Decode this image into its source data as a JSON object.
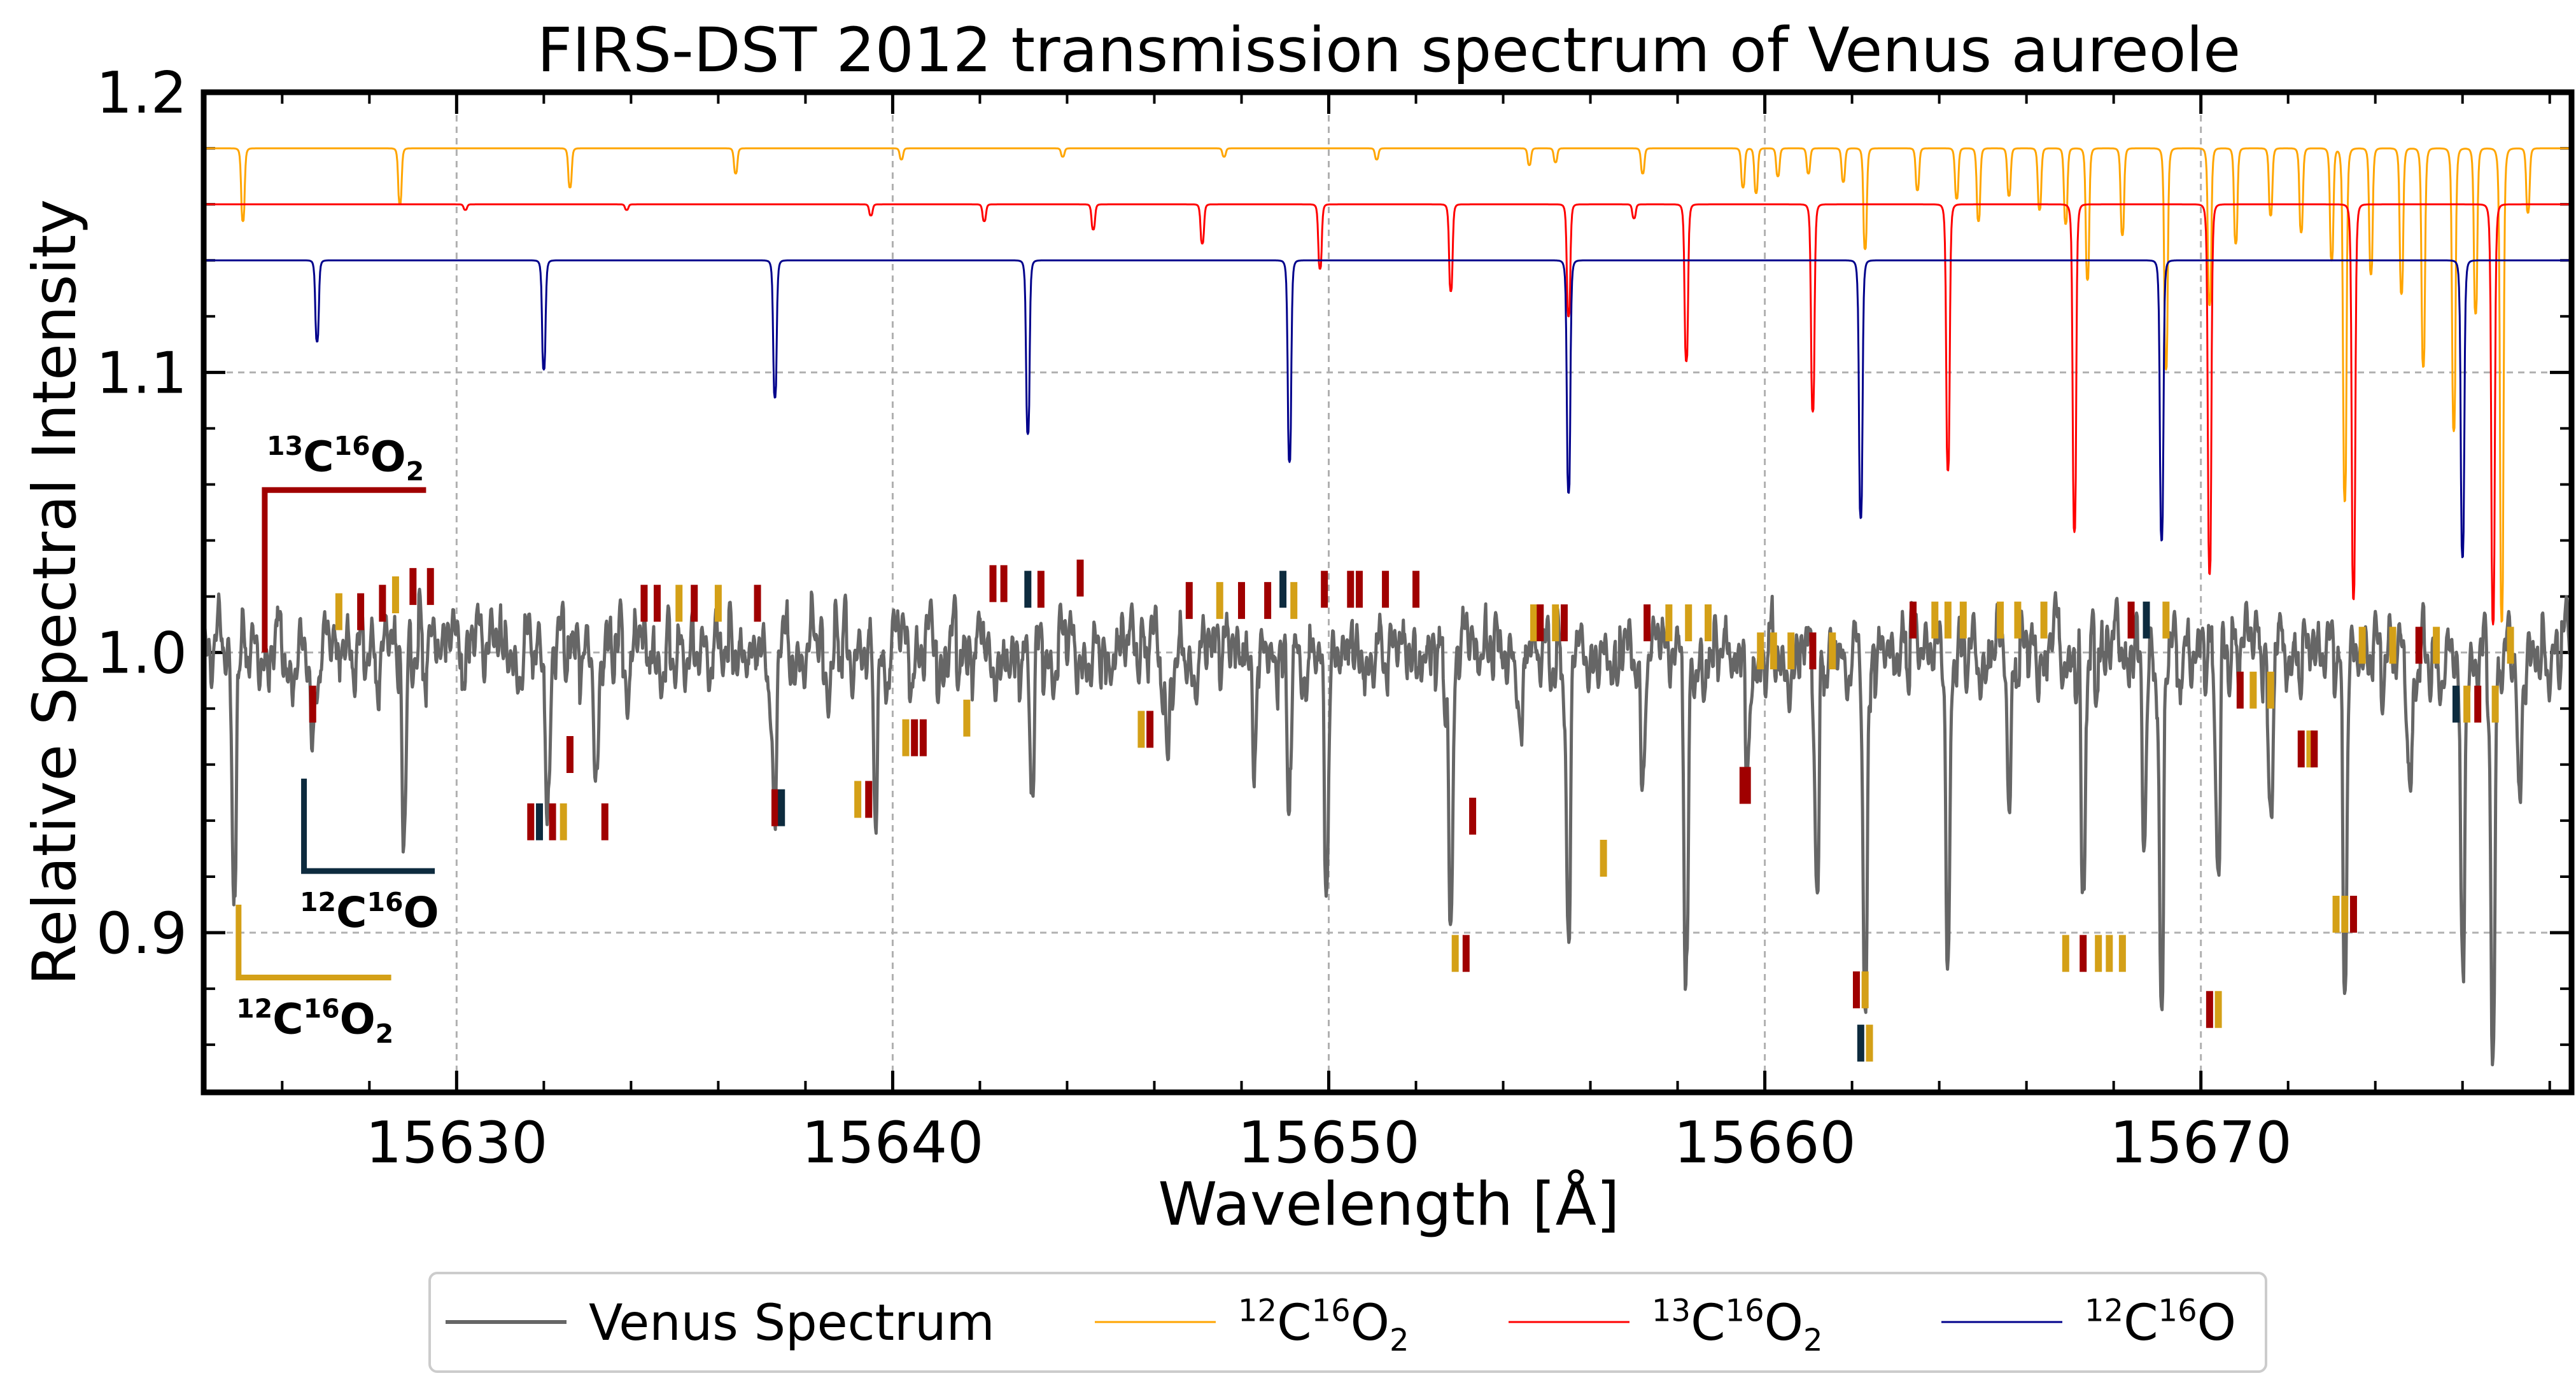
{
  "chart_data": {
    "type": "line",
    "title": "FIRS-DST 2012 transmission spectrum of Venus aureole",
    "xlabel": "Wavelength [Å]",
    "ylabel": "Relative Spectral Intensity",
    "xlim": [
      15624.2,
      15678.5
    ],
    "ylim": [
      0.843,
      1.2
    ],
    "xticks": [
      15630,
      15640,
      15650,
      15660,
      15670
    ],
    "xtick_labels": [
      "15630",
      "15640",
      "15650",
      "15660",
      "15670"
    ],
    "yticks": [
      0.9,
      1.0,
      1.1,
      1.2
    ],
    "ytick_labels": [
      "0.9",
      "1.0",
      "1.1",
      "1.2"
    ],
    "grid": true,
    "legend_position": "bottom-center, below axes",
    "legend": [
      {
        "key": "venus",
        "label": "Venus Spectrum",
        "color": "#666666",
        "iso": null
      },
      {
        "key": "co2_12",
        "label": "12C16O2",
        "color": "#ffa500",
        "iso": {
          "a": "12",
          "e": "C",
          "b": "16",
          "f": "O",
          "s": "2"
        }
      },
      {
        "key": "co2_13",
        "label": "13C16O2",
        "color": "#ff0000",
        "iso": {
          "a": "13",
          "e": "C",
          "b": "16",
          "f": "O",
          "s": "2"
        }
      },
      {
        "key": "co_12",
        "label": "12C16O",
        "color": "#00008b",
        "iso": {
          "a": "12",
          "e": "C",
          "b": "16",
          "f": "O",
          "s": ""
        }
      }
    ],
    "series": [
      {
        "key": "co2_12",
        "name": "12C16O2",
        "color": "#ffa500",
        "continuum": 1.18,
        "lines": [
          [
            15625.1,
            0.026
          ],
          [
            15628.7,
            0.02
          ],
          [
            15632.6,
            0.014
          ],
          [
            15636.4,
            0.009
          ],
          [
            15640.2,
            0.004
          ],
          [
            15643.9,
            0.003
          ],
          [
            15647.6,
            0.003
          ],
          [
            15651.1,
            0.004
          ],
          [
            15654.6,
            0.006
          ],
          [
            15655.2,
            0.005
          ],
          [
            15657.2,
            0.009
          ],
          [
            15659.5,
            0.014
          ],
          [
            15659.8,
            0.016
          ],
          [
            15660.3,
            0.01
          ],
          [
            15661.0,
            0.009
          ],
          [
            15661.8,
            0.012
          ],
          [
            15662.3,
            0.036
          ],
          [
            15663.5,
            0.015
          ],
          [
            15664.4,
            0.018
          ],
          [
            15664.9,
            0.026
          ],
          [
            15665.6,
            0.017
          ],
          [
            15666.3,
            0.022
          ],
          [
            15666.9,
            0.027
          ],
          [
            15667.4,
            0.047
          ],
          [
            15668.2,
            0.031
          ],
          [
            15669.2,
            0.079
          ],
          [
            15670.2,
            0.056
          ],
          [
            15670.8,
            0.034
          ],
          [
            15671.6,
            0.024
          ],
          [
            15672.3,
            0.03
          ],
          [
            15673.0,
            0.04
          ],
          [
            15673.3,
            0.126
          ],
          [
            15673.9,
            0.045
          ],
          [
            15674.6,
            0.052
          ],
          [
            15675.1,
            0.078
          ],
          [
            15675.8,
            0.101
          ],
          [
            15676.3,
            0.059
          ],
          [
            15676.9,
            0.169
          ],
          [
            15677.5,
            0.023
          ]
        ]
      },
      {
        "key": "co2_13",
        "name": "13C16O2",
        "color": "#ff0000",
        "continuum": 1.16,
        "lines": [
          [
            15630.2,
            0.002
          ],
          [
            15633.9,
            0.002
          ],
          [
            15639.5,
            0.004
          ],
          [
            15642.1,
            0.006
          ],
          [
            15644.6,
            0.009
          ],
          [
            15647.1,
            0.014
          ],
          [
            15649.8,
            0.023
          ],
          [
            15652.8,
            0.031
          ],
          [
            15655.5,
            0.04
          ],
          [
            15657.0,
            0.005
          ],
          [
            15658.2,
            0.056
          ],
          [
            15661.1,
            0.074
          ],
          [
            15664.2,
            0.095
          ],
          [
            15667.1,
            0.117
          ],
          [
            15670.2,
            0.132
          ],
          [
            15673.5,
            0.141
          ],
          [
            15676.7,
            0.15
          ]
        ]
      },
      {
        "key": "co_12",
        "name": "12C16O",
        "color": "#00008b",
        "continuum": 1.14,
        "lines": [
          [
            15626.8,
            0.029
          ],
          [
            15632.0,
            0.039
          ],
          [
            15637.3,
            0.049
          ],
          [
            15643.1,
            0.062
          ],
          [
            15649.1,
            0.072
          ],
          [
            15655.5,
            0.083
          ],
          [
            15662.2,
            0.092
          ],
          [
            15669.1,
            0.1
          ],
          [
            15676.0,
            0.106
          ]
        ]
      },
      {
        "key": "venus",
        "name": "Venus Spectrum",
        "color": "#666666",
        "continuum": 1.0,
        "lines": [
          [
            15624.9,
            0.082
          ],
          [
            15626.7,
            0.032
          ],
          [
            15628.8,
            0.068
          ],
          [
            15632.1,
            0.052
          ],
          [
            15633.2,
            0.045
          ],
          [
            15637.3,
            0.055
          ],
          [
            15639.6,
            0.055
          ],
          [
            15643.2,
            0.048
          ],
          [
            15646.3,
            0.036
          ],
          [
            15648.3,
            0.036
          ],
          [
            15649.1,
            0.052
          ],
          [
            15649.95,
            0.088
          ],
          [
            15652.8,
            0.096
          ],
          [
            15654.4,
            0.03
          ],
          [
            15655.5,
            0.104
          ],
          [
            15657.2,
            0.052
          ],
          [
            15658.2,
            0.12
          ],
          [
            15659.6,
            0.05
          ],
          [
            15661.2,
            0.08
          ],
          [
            15662.3,
            0.133
          ],
          [
            15664.2,
            0.11
          ],
          [
            15665.6,
            0.06
          ],
          [
            15667.3,
            0.1
          ],
          [
            15668.7,
            0.06
          ],
          [
            15669.1,
            0.133
          ],
          [
            15670.4,
            0.078
          ],
          [
            15671.6,
            0.056
          ],
          [
            15673.3,
            0.125
          ],
          [
            15674.8,
            0.05
          ],
          [
            15676.0,
            0.11
          ],
          [
            15676.7,
            0.145
          ],
          [
            15677.3,
            0.05
          ]
        ]
      }
    ],
    "line_markers": {
      "colors": {
        "co2_12": "#d4a017",
        "co2_13": "#a00000",
        "co_12": "#0d2b3e"
      },
      "items": [
        [
          "co2_12",
          15627.3,
          1.008
        ],
        [
          "co2_13",
          15627.8,
          1.008
        ],
        [
          "co2_13",
          15628.3,
          1.011
        ],
        [
          "co2_12",
          15628.6,
          1.014
        ],
        [
          "co2_13",
          15629.0,
          1.017
        ],
        [
          "co2_13",
          15629.4,
          1.017
        ],
        [
          "co2_13",
          15626.7,
          0.975
        ],
        [
          "co2_13",
          15631.7,
          0.933
        ],
        [
          "co_12",
          15631.9,
          0.933
        ],
        [
          "co2_13",
          15632.2,
          0.933
        ],
        [
          "co2_12",
          15632.45,
          0.933
        ],
        [
          "co2_13",
          15632.6,
          0.957
        ],
        [
          "co2_13",
          15633.4,
          0.933
        ],
        [
          "co2_13",
          15634.3,
          1.011
        ],
        [
          "co2_13",
          15634.6,
          1.011
        ],
        [
          "co2_12",
          15635.1,
          1.011
        ],
        [
          "co2_13",
          15635.45,
          1.011
        ],
        [
          "co2_12",
          15636.0,
          1.011
        ],
        [
          "co2_13",
          15636.9,
          1.011
        ],
        [
          "co2_13",
          15637.3,
          0.938
        ],
        [
          "co_12",
          15637.45,
          0.938
        ],
        [
          "co2_12",
          15639.2,
          0.941
        ],
        [
          "co2_13",
          15639.45,
          0.941
        ],
        [
          "co2_12",
          15640.3,
          0.963
        ],
        [
          "co2_13",
          15640.5,
          0.963
        ],
        [
          "co2_13",
          15640.7,
          0.963
        ],
        [
          "co2_12",
          15641.7,
          0.97
        ],
        [
          "co2_13",
          15642.3,
          1.018
        ],
        [
          "co2_13",
          15642.55,
          1.018
        ],
        [
          "co_12",
          15643.1,
          1.016
        ],
        [
          "co2_13",
          15643.4,
          1.016
        ],
        [
          "co2_13",
          15644.3,
          1.02
        ],
        [
          "co2_12",
          15645.7,
          0.966
        ],
        [
          "co2_13",
          15645.9,
          0.966
        ],
        [
          "co2_13",
          15646.8,
          1.012
        ],
        [
          "co2_12",
          15647.5,
          1.012
        ],
        [
          "co2_13",
          15648.0,
          1.012
        ],
        [
          "co2_13",
          15648.6,
          1.012
        ],
        [
          "co_12",
          15648.95,
          1.016
        ],
        [
          "co2_12",
          15649.2,
          1.012
        ],
        [
          "co2_13",
          15649.9,
          1.016
        ],
        [
          "co2_13",
          15650.5,
          1.016
        ],
        [
          "co2_13",
          15650.7,
          1.016
        ],
        [
          "co2_13",
          15651.3,
          1.016
        ],
        [
          "co2_13",
          15652.0,
          1.016
        ],
        [
          "co2_12",
          15652.9,
          0.886
        ],
        [
          "co2_13",
          15653.15,
          0.886
        ],
        [
          "co2_13",
          15653.3,
          0.935
        ],
        [
          "co2_12",
          15654.7,
          1.004
        ],
        [
          "co2_13",
          15654.85,
          1.004
        ],
        [
          "co2_12",
          15655.2,
          1.004
        ],
        [
          "co2_13",
          15655.4,
          1.004
        ],
        [
          "co2_12",
          15656.3,
          0.92
        ],
        [
          "co2_13",
          15657.3,
          1.004
        ],
        [
          "co2_12",
          15657.8,
          1.004
        ],
        [
          "co2_12",
          15658.25,
          1.004
        ],
        [
          "co2_12",
          15658.7,
          1.004
        ],
        [
          "co2_13",
          15659.5,
          0.946
        ],
        [
          "co2_13",
          15659.6,
          0.946
        ],
        [
          "co2_12",
          15659.9,
          0.994
        ],
        [
          "co2_12",
          15660.2,
          0.994
        ],
        [
          "co2_12",
          15660.6,
          0.994
        ],
        [
          "co2_13",
          15661.1,
          0.994
        ],
        [
          "co2_12",
          15661.55,
          0.994
        ],
        [
          "co2_13",
          15662.1,
          0.873
        ],
        [
          "co2_12",
          15662.3,
          0.873
        ],
        [
          "co_12",
          15662.2,
          0.854
        ],
        [
          "co2_12",
          15662.4,
          0.854
        ],
        [
          "co2_13",
          15663.4,
          1.005
        ],
        [
          "co2_12",
          15663.9,
          1.005
        ],
        [
          "co2_12",
          15664.2,
          1.005
        ],
        [
          "co2_12",
          15664.55,
          1.005
        ],
        [
          "co2_12",
          15665.4,
          1.005
        ],
        [
          "co2_12",
          15665.8,
          1.005
        ],
        [
          "co2_12",
          15666.4,
          1.005
        ],
        [
          "co2_12",
          15666.9,
          0.886
        ],
        [
          "co2_13",
          15667.3,
          0.886
        ],
        [
          "co2_12",
          15667.65,
          0.886
        ],
        [
          "co2_12",
          15667.9,
          0.886
        ],
        [
          "co2_12",
          15668.2,
          0.886
        ],
        [
          "co2_13",
          15668.4,
          1.005
        ],
        [
          "co_12",
          15668.75,
          1.005
        ],
        [
          "co2_12",
          15669.2,
          1.005
        ],
        [
          "co2_13",
          15670.2,
          0.866
        ],
        [
          "co2_12",
          15670.4,
          0.866
        ],
        [
          "co2_13",
          15670.9,
          0.98
        ],
        [
          "co2_12",
          15671.2,
          0.98
        ],
        [
          "co2_12",
          15671.6,
          0.98
        ],
        [
          "co2_13",
          15672.3,
          0.959
        ],
        [
          "co2_12",
          15672.5,
          0.959
        ],
        [
          "co2_13",
          15672.6,
          0.959
        ],
        [
          "co2_12",
          15673.1,
          0.9
        ],
        [
          "co2_12",
          15673.3,
          0.9
        ],
        [
          "co2_13",
          15673.5,
          0.9
        ],
        [
          "co2_12",
          15673.7,
          0.996
        ],
        [
          "co2_12",
          15674.4,
          0.996
        ],
        [
          "co2_13",
          15675.0,
          0.996
        ],
        [
          "co2_12",
          15675.4,
          0.996
        ],
        [
          "co_12",
          15675.85,
          0.975
        ],
        [
          "co2_12",
          15676.1,
          0.975
        ],
        [
          "co2_13",
          15676.35,
          0.975
        ],
        [
          "co2_12",
          15676.75,
          0.975
        ],
        [
          "co2_12",
          15677.1,
          0.996
        ]
      ]
    },
    "annotations": [
      {
        "key": "co2_13",
        "label": "13C16O2",
        "iso": {
          "a": "13",
          "e": "C",
          "b": "16",
          "f": "O",
          "s": "2"
        },
        "color": "#a00000",
        "corner": "top-right",
        "x0": 15625.6,
        "x1": 15629.3,
        "y0": 1.0,
        "y1": 1.058
      },
      {
        "key": "co_12",
        "label": "12C16O",
        "iso": {
          "a": "12",
          "e": "C",
          "b": "16",
          "f": "O",
          "s": ""
        },
        "color": "#0d2b3e",
        "corner": "bottom-right",
        "x0": 15626.5,
        "x1": 15629.5,
        "y0": 0.955,
        "y1": 0.922
      },
      {
        "key": "co2_12",
        "label": "12C16O2",
        "iso": {
          "a": "12",
          "e": "C",
          "b": "16",
          "f": "O",
          "s": "2"
        },
        "color": "#d4a017",
        "corner": "bottom-right",
        "x0": 15625.0,
        "x1": 15628.5,
        "y0": 0.91,
        "y1": 0.884
      }
    ]
  }
}
